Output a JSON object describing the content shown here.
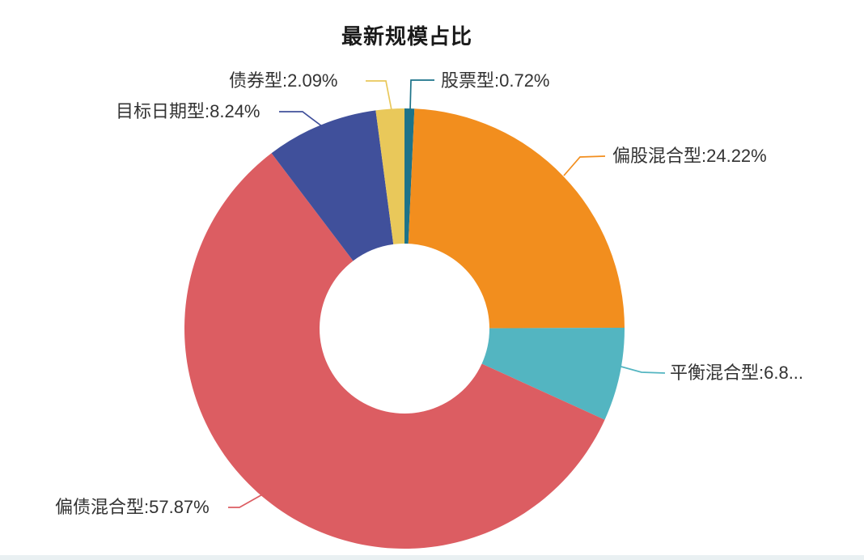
{
  "title": "最新规模占比",
  "chart_data": {
    "type": "pie",
    "title": "最新规模占比",
    "donut": true,
    "start_angle": "12-o'clock",
    "direction": "clockwise",
    "legend_position": "none",
    "labels": "outside with leader lines",
    "unit": "%",
    "slices": [
      {
        "name": "股票型",
        "value": 0.72,
        "display_label": "股票型:0.72%",
        "color": "#1d7389"
      },
      {
        "name": "偏股混合型",
        "value": 24.22,
        "display_label": "偏股混合型:24.22%",
        "color": "#f28e1e"
      },
      {
        "name": "平衡混合型",
        "value": 6.86,
        "display_label": "平衡混合型:6.8...",
        "color": "#53b5c1"
      },
      {
        "name": "偏债混合型",
        "value": 57.87,
        "display_label": "偏债混合型:57.87%",
        "color": "#dc5d62"
      },
      {
        "name": "目标日期型",
        "value": 8.24,
        "display_label": "目标日期型:8.24%",
        "color": "#40509b"
      },
      {
        "name": "债券型",
        "value": 2.09,
        "display_label": "债券型:2.09%",
        "color": "#e9c85a"
      }
    ]
  },
  "footer": {
    "strip_color": "#e9f0f2"
  }
}
